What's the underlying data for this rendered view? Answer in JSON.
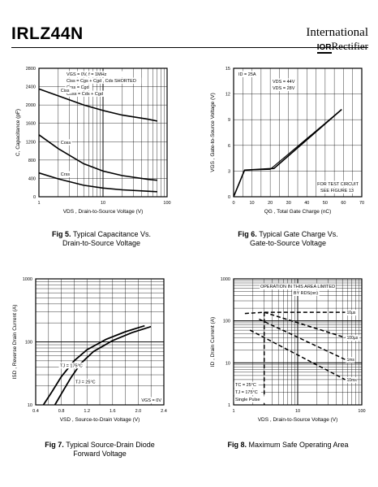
{
  "header": {
    "part_number": "IRLZ44N",
    "logo_line1": "International",
    "logo_ior": "IOR",
    "logo_line2": "Rectifier"
  },
  "captions": {
    "fig5_num": "Fig 5.",
    "fig5_text": "Typical Capacitance Vs.",
    "fig5_text2": "Drain-to-Source Voltage",
    "fig6_num": "Fig 6.",
    "fig6_text": "Typical Gate Charge Vs.",
    "fig6_text2": "Gate-to-Source Voltage",
    "fig7_num": "Fig 7.",
    "fig7_text": "Typical Source-Drain Diode",
    "fig7_text2": "Forward Voltage",
    "fig8_num": "Fig 8.",
    "fig8_text": "Maximum Safe Operating Area"
  },
  "chart_data": [
    {
      "id": "fig5",
      "type": "line",
      "x_scale": "log",
      "xlim": [
        1,
        100
      ],
      "ylim": [
        0,
        2800
      ],
      "xticks": [
        "1",
        "10",
        "100"
      ],
      "yticks": [
        "0",
        "400",
        "800",
        "1200",
        "1600",
        "2000",
        "2400",
        "2800"
      ],
      "xlabel": "VDS , Drain-to-Source Voltage (V)",
      "ylabel": "C, Capacitance (pF)",
      "annotations": [
        "VGS = 0V,      f = 1MHz",
        "Ciss = Cgs + Cgd , Cds SHORTED",
        "Crss = Cgd",
        "Coss = Cds + Cgd"
      ],
      "series": [
        {
          "name": "Ciss",
          "x": [
            1,
            2,
            5,
            10,
            20,
            50,
            70
          ],
          "y": [
            2350,
            2200,
            2000,
            1880,
            1780,
            1690,
            1650
          ]
        },
        {
          "name": "Coss",
          "x": [
            1,
            2,
            5,
            10,
            20,
            50,
            70
          ],
          "y": [
            1350,
            1050,
            720,
            560,
            460,
            380,
            360
          ]
        },
        {
          "name": "Crss",
          "x": [
            1,
            2,
            5,
            10,
            20,
            50,
            70
          ],
          "y": [
            520,
            390,
            250,
            190,
            150,
            120,
            110
          ]
        }
      ]
    },
    {
      "id": "fig6",
      "type": "line",
      "x_scale": "linear",
      "xlim": [
        0,
        70
      ],
      "ylim": [
        0,
        15
      ],
      "xticks": [
        "0",
        "10",
        "20",
        "30",
        "40",
        "50",
        "60",
        "70"
      ],
      "yticks": [
        "0",
        "3",
        "6",
        "9",
        "12",
        "15"
      ],
      "xlabel": "QG , Total Gate Charge (nC)",
      "ylabel": "VGS , Gate-to-Source Voltage (V)",
      "annotations": [
        "ID = 25A",
        "VDS = 44V",
        "VDS = 28V",
        "FOR TEST CIRCUIT",
        "SEE FIGURE 13"
      ],
      "series": [
        {
          "name": "VDS = 44V",
          "x": [
            0,
            6,
            22,
            59
          ],
          "y": [
            0,
            3.1,
            3.3,
            10.2
          ]
        },
        {
          "name": "VDS = 28V",
          "x": [
            0,
            6,
            20,
            59
          ],
          "y": [
            0,
            3.1,
            3.2,
            10.2
          ]
        }
      ]
    },
    {
      "id": "fig7",
      "type": "line",
      "x_scale": "linear",
      "y_scale": "log",
      "xlim": [
        0.4,
        2.4
      ],
      "ylim": [
        10,
        1000
      ],
      "xticks": [
        "0.4",
        "0.8",
        "1.2",
        "1.6",
        "2.0",
        "2.4"
      ],
      "yticks": [
        "10",
        "100",
        "1000"
      ],
      "xlabel": "VSD , Source-to-Drain Voltage (V)",
      "ylabel": "ISD , Reverse Drain Current (A)",
      "annotations": [
        "TJ = 175°C",
        "TJ = 25°C",
        "VGS = 0V"
      ],
      "series": [
        {
          "name": "TJ = 175°C",
          "x": [
            0.52,
            0.65,
            0.8,
            1.0,
            1.2,
            1.5,
            1.8,
            2.1
          ],
          "y": [
            10,
            16,
            28,
            50,
            75,
            110,
            145,
            180
          ]
        },
        {
          "name": "TJ = 25°C",
          "x": [
            0.7,
            0.8,
            0.95,
            1.1,
            1.3,
            1.6,
            1.9,
            2.2
          ],
          "y": [
            10,
            15,
            27,
            45,
            70,
            105,
            140,
            175
          ]
        }
      ]
    },
    {
      "id": "fig8",
      "type": "line",
      "x_scale": "log",
      "y_scale": "log",
      "xlim": [
        1,
        100
      ],
      "ylim": [
        1,
        1000
      ],
      "xticks": [
        "1",
        "10",
        "100"
      ],
      "yticks": [
        "1",
        "10",
        "100",
        "1000"
      ],
      "xlabel": "VDS , Drain-to-Source Voltage (V)",
      "ylabel": "ID , Drain Current (A)",
      "annotations": [
        "OPERATION IN THIS AREA LIMITED",
        "BY RDS(on)",
        "TC = 25°C",
        "TJ = 175°C",
        "Single Pulse"
      ],
      "series": [
        {
          "name": "10µs",
          "x": [
            1.5,
            3,
            55
          ],
          "y": [
            150,
            160,
            160
          ]
        },
        {
          "name": "100µs",
          "x": [
            3,
            55
          ],
          "y": [
            160,
            40
          ]
        },
        {
          "name": "1ms",
          "x": [
            2.5,
            55
          ],
          "y": [
            110,
            12
          ]
        },
        {
          "name": "10ms",
          "x": [
            1.8,
            55
          ],
          "y": [
            60,
            4
          ]
        }
      ]
    }
  ]
}
